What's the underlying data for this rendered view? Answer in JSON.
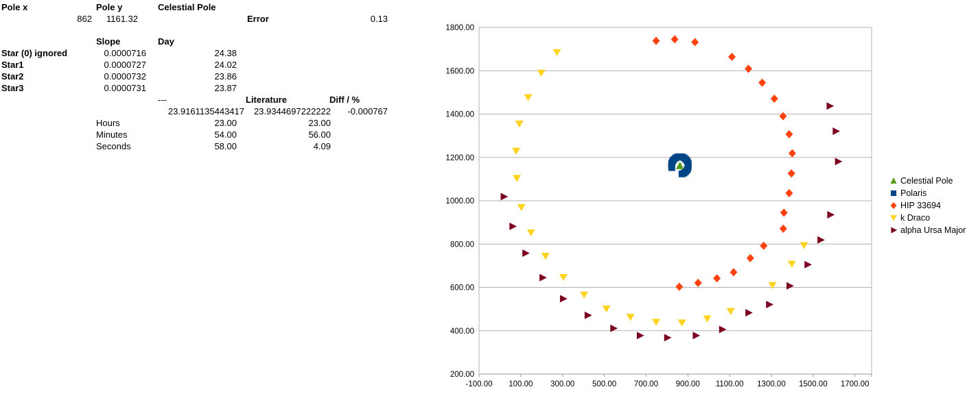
{
  "stats_panel": {
    "pole_x_label": "Pole x",
    "pole_y_label": "Pole y",
    "celestial_pole_label": "Celestial Pole",
    "pole_x_value": "862",
    "pole_y_value": "1161.32",
    "error_label": "Error",
    "error_value": "0.13",
    "slope_label": "Slope",
    "day_label": "Day",
    "stars": [
      {
        "name": "Star (0) ignored",
        "slope": "0.0000716",
        "day": "24.38"
      },
      {
        "name": "Star1",
        "slope": "0.0000727",
        "day": "24.02"
      },
      {
        "name": "Star2",
        "slope": "0.0000732",
        "day": "23.86"
      },
      {
        "name": "Star3",
        "slope": "0.0000731",
        "day": "23.87"
      }
    ],
    "dashes_label": "---",
    "literature_label": "Literature",
    "diff_label": "Diff / %",
    "mean_value": "23.9161135443417",
    "literature_value": "23.9344697222222",
    "diff_value": "-0.000767",
    "hms_rows": [
      {
        "label": "Hours",
        "measured": "23.00",
        "literature": "23.00"
      },
      {
        "label": "Minutes",
        "measured": "54.00",
        "literature": "56.00"
      },
      {
        "label": "Seconds",
        "measured": "58.00",
        "literature": "4.09"
      }
    ]
  },
  "chart_data": {
    "type": "scatter",
    "title": "",
    "xlabel": "",
    "ylabel": "",
    "xlim": [
      -100,
      1780
    ],
    "ylim": [
      200,
      1800
    ],
    "x_ticks": [
      -100,
      100,
      300,
      500,
      700,
      900,
      1100,
      1300,
      1500,
      1700
    ],
    "y_ticks": [
      200,
      400,
      600,
      800,
      1000,
      1200,
      1400,
      1600,
      1800
    ],
    "tick_decimals": 2,
    "grid": "horizontal-only",
    "legend_position": "right",
    "colors": {
      "grid": "#b3b3b3",
      "axis": "#999999",
      "border": "#b3b3b3"
    },
    "draw_order": [
      1,
      2,
      3,
      4,
      0
    ],
    "series": [
      {
        "name": "Celestial Pole",
        "marker": "triangle-up",
        "color": "#579D1C",
        "points": [
          [
            862,
            1161.32
          ]
        ]
      },
      {
        "name": "Polaris",
        "marker": "square",
        "color": "#004586",
        "points": [
          [
            872,
            1124
          ],
          [
            882,
            1128
          ],
          [
            890,
            1135
          ],
          [
            897,
            1143
          ],
          [
            901,
            1153
          ],
          [
            902,
            1163
          ],
          [
            901,
            1173
          ],
          [
            897,
            1183
          ],
          [
            890,
            1191
          ],
          [
            882,
            1198
          ],
          [
            872,
            1202
          ],
          [
            862,
            1203
          ],
          [
            852,
            1202
          ],
          [
            842,
            1198
          ],
          [
            834,
            1191
          ],
          [
            827,
            1183
          ],
          [
            823,
            1173
          ],
          [
            822,
            1163
          ],
          [
            823,
            1153
          ]
        ]
      },
      {
        "name": "HIP 33694",
        "marker": "diamond",
        "color": "#FF420E",
        "points": [
          [
            748,
            1738
          ],
          [
            837,
            1745
          ],
          [
            934,
            1732
          ],
          [
            1111,
            1664
          ],
          [
            1190,
            1609
          ],
          [
            1256,
            1545
          ],
          [
            1314,
            1471
          ],
          [
            1356,
            1390
          ],
          [
            1385,
            1307
          ],
          [
            1400,
            1219
          ],
          [
            1396,
            1126
          ],
          [
            1385,
            1035
          ],
          [
            1360,
            945
          ],
          [
            1357,
            871
          ],
          [
            1263,
            792
          ],
          [
            1199,
            735
          ],
          [
            1119,
            670
          ],
          [
            1039,
            642
          ],
          [
            949,
            621
          ],
          [
            859,
            603
          ]
        ]
      },
      {
        "name": "k Draco",
        "marker": "triangle-down",
        "color": "#FFD320",
        "points": [
          [
            273,
            1685
          ],
          [
            198,
            1590
          ],
          [
            135,
            1477
          ],
          [
            93,
            1355
          ],
          [
            78,
            1230
          ],
          [
            81,
            1104
          ],
          [
            103,
            970
          ],
          [
            149,
            853
          ],
          [
            218,
            745
          ],
          [
            304,
            647
          ],
          [
            403,
            566
          ],
          [
            510,
            502
          ],
          [
            625,
            463
          ],
          [
            748,
            440
          ],
          [
            872,
            437
          ],
          [
            993,
            456
          ],
          [
            1105,
            490
          ],
          [
            1305,
            610
          ],
          [
            1398,
            708
          ],
          [
            1456,
            794
          ]
        ]
      },
      {
        "name": "alpha Ursa Major",
        "marker": "triangle-right",
        "color": "#7E0021",
        "points": [
          [
            18,
            1019
          ],
          [
            60,
            882
          ],
          [
            122,
            758
          ],
          [
            204,
            645
          ],
          [
            302,
            548
          ],
          [
            420,
            471
          ],
          [
            543,
            411
          ],
          [
            670,
            378
          ],
          [
            801,
            368
          ],
          [
            938,
            378
          ],
          [
            1064,
            406
          ],
          [
            1190,
            483
          ],
          [
            1289,
            521
          ],
          [
            1387,
            607
          ],
          [
            1473,
            705
          ],
          [
            1535,
            819
          ],
          [
            1582,
            935
          ],
          [
            1619,
            1181
          ],
          [
            1608,
            1321
          ],
          [
            1579,
            1437
          ]
        ]
      }
    ]
  }
}
